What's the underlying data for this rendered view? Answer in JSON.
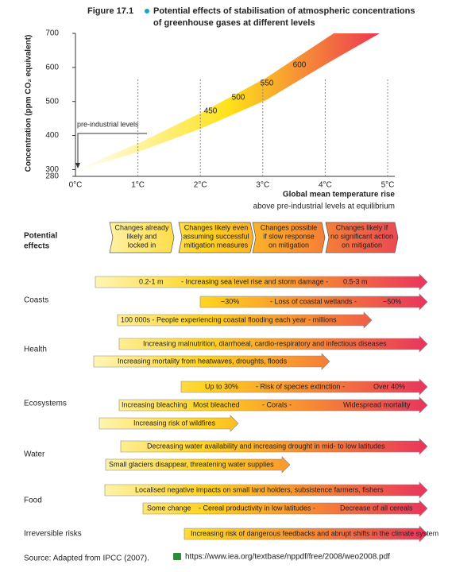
{
  "figure": {
    "label": "Figure 17.1",
    "title_lines": [
      "Potential effects of stabilisation of atmospheric concentrations",
      "of greenhouse gases at different levels"
    ]
  },
  "chart": {
    "y_label": "Concentration (ppm CO₂ equivalent)",
    "yticks": [
      280,
      300,
      400,
      500,
      600,
      700
    ],
    "xticks": [
      "0°C",
      "1°C",
      "2°C",
      "3°C",
      "4°C",
      "5°C"
    ],
    "x_label": "Global mean temperature rise",
    "x_sublabel": "above pre-industrial levels at equilibrium",
    "annotation": "pre-industrial levels",
    "band_labels": [
      "450",
      "500",
      "550",
      "600"
    ]
  },
  "heading": [
    "Potential",
    "effects"
  ],
  "stages": [
    [
      "Changes already",
      "likely and",
      "locked in"
    ],
    [
      "Changes likely even",
      "assuming successful",
      "mitigation measures"
    ],
    [
      "Changes possible",
      "if slow response",
      "on mitigation"
    ],
    [
      "Changes likely if",
      "no significant action",
      "on mitigation"
    ]
  ],
  "rows": [
    {
      "label": "Coasts",
      "arrows": [
        [
          "0.2-1 m",
          "- Increasing sea level rise and storm damage -",
          "0.5-3 m"
        ],
        [
          "~30%",
          "- Loss of coastal wetlands -",
          "~50%"
        ],
        [
          "100 000s - People experiencing coastal flooding each year - millions"
        ]
      ]
    },
    {
      "label": "Health",
      "arrows": [
        [
          "Increasing malnutrition, diarrhoeal, cardio-respiratory and infectious diseases"
        ],
        [
          "Increasing mortality from heatwaves, droughts, floods"
        ]
      ]
    },
    {
      "label": "Ecosystems",
      "arrows": [
        [
          "Up to 30%",
          "- Risk of species extinction -",
          "Over 40%"
        ],
        [
          "Increasing bleaching",
          "Most bleached",
          "- Corals -",
          "Widespread mortality"
        ],
        [
          "Increasing risk of wildfires"
        ]
      ]
    },
    {
      "label": "Water",
      "arrows": [
        [
          "Decreasing water availability and increasing drought in mid- to low latitudes"
        ],
        [
          "Small glaciers disappear, threatening water supplies"
        ]
      ]
    },
    {
      "label": "Food",
      "arrows": [
        [
          "Localised negative impacts on small land holders, subsistence farmers, fishers"
        ],
        [
          "Some change",
          "- Cereal productivity in low latitudes -",
          "Decrease of all cereals"
        ]
      ]
    },
    {
      "label": "Irreversible risks",
      "arrows": [
        [
          "Increasing risk of dangerous feedbacks and abrupt shifts in the climate system"
        ]
      ]
    }
  ],
  "source": "Source: Adapted from IPCC (2007).",
  "url": "https://www.iea.org/textbase/nppdf/free/2008/weo2008.pdf"
}
